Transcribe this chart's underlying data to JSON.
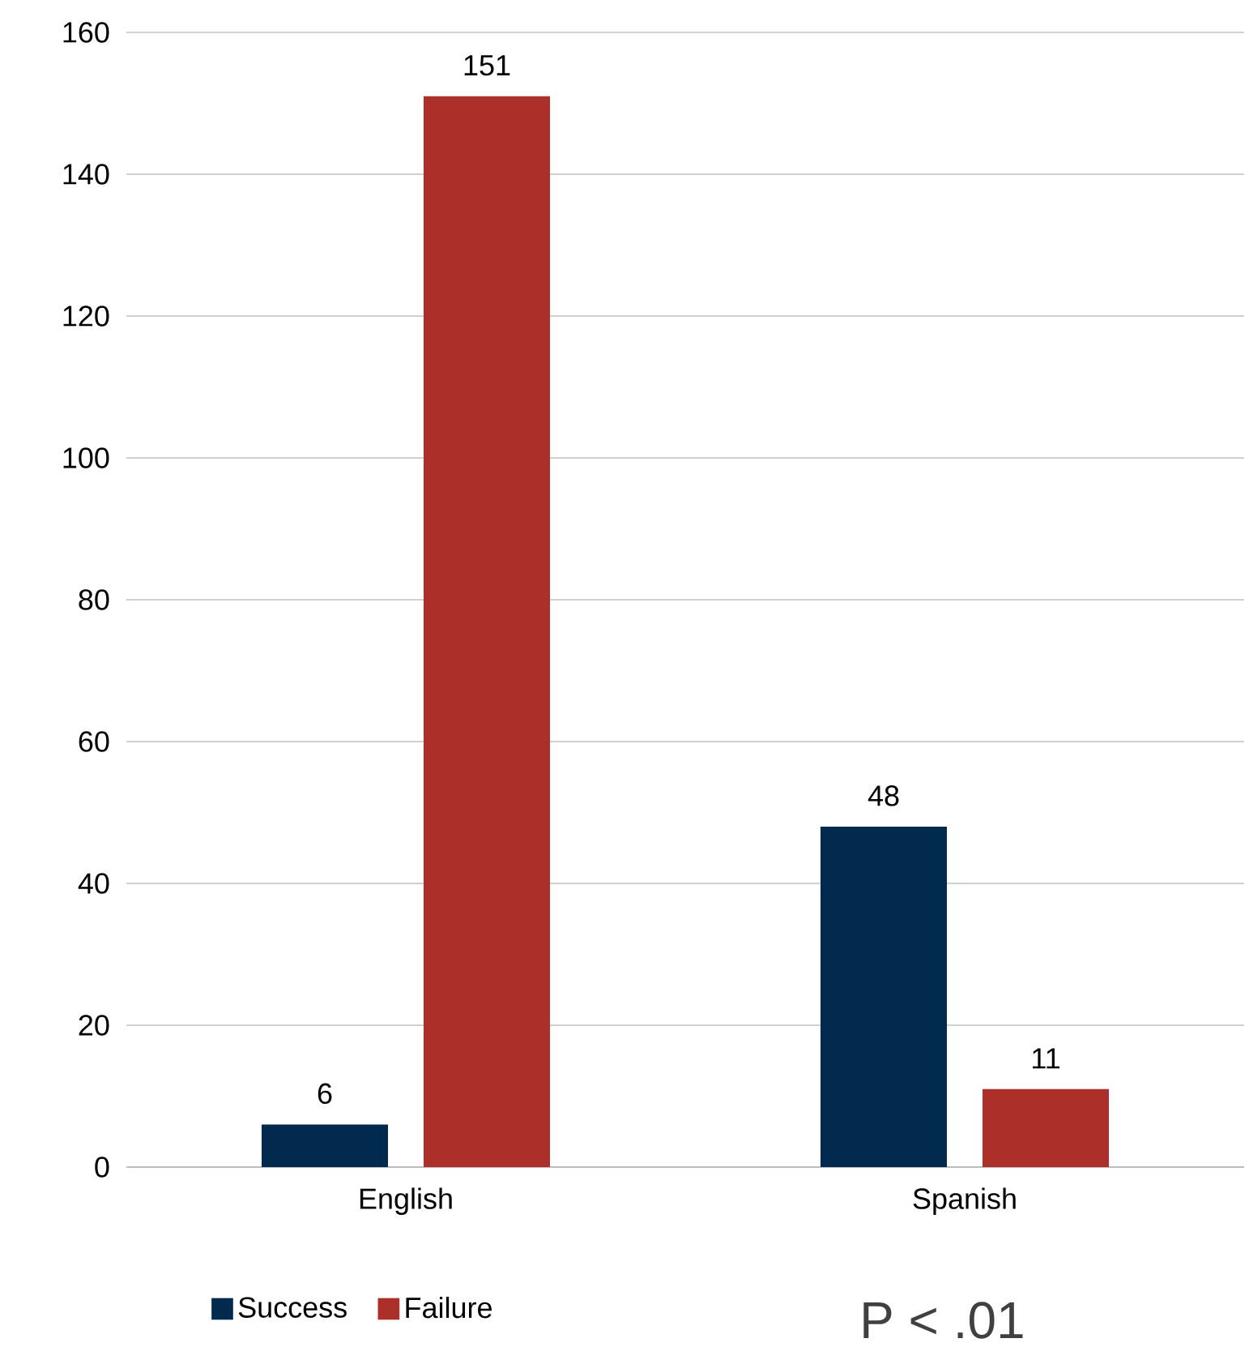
{
  "chart_data": {
    "type": "bar",
    "categories": [
      "English",
      "Spanish"
    ],
    "series": [
      {
        "name": "Success",
        "color": "#022a4f",
        "values": [
          6,
          48
        ]
      },
      {
        "name": "Failure",
        "color": "#ad2f29",
        "values": [
          151,
          11
        ]
      }
    ],
    "ylim": [
      0,
      160
    ],
    "yticks": [
      0,
      20,
      40,
      60,
      80,
      100,
      120,
      140,
      160
    ],
    "grid": "y",
    "legend": "bottom left",
    "data_labels": true,
    "annotations": [
      "P < .01"
    ]
  }
}
